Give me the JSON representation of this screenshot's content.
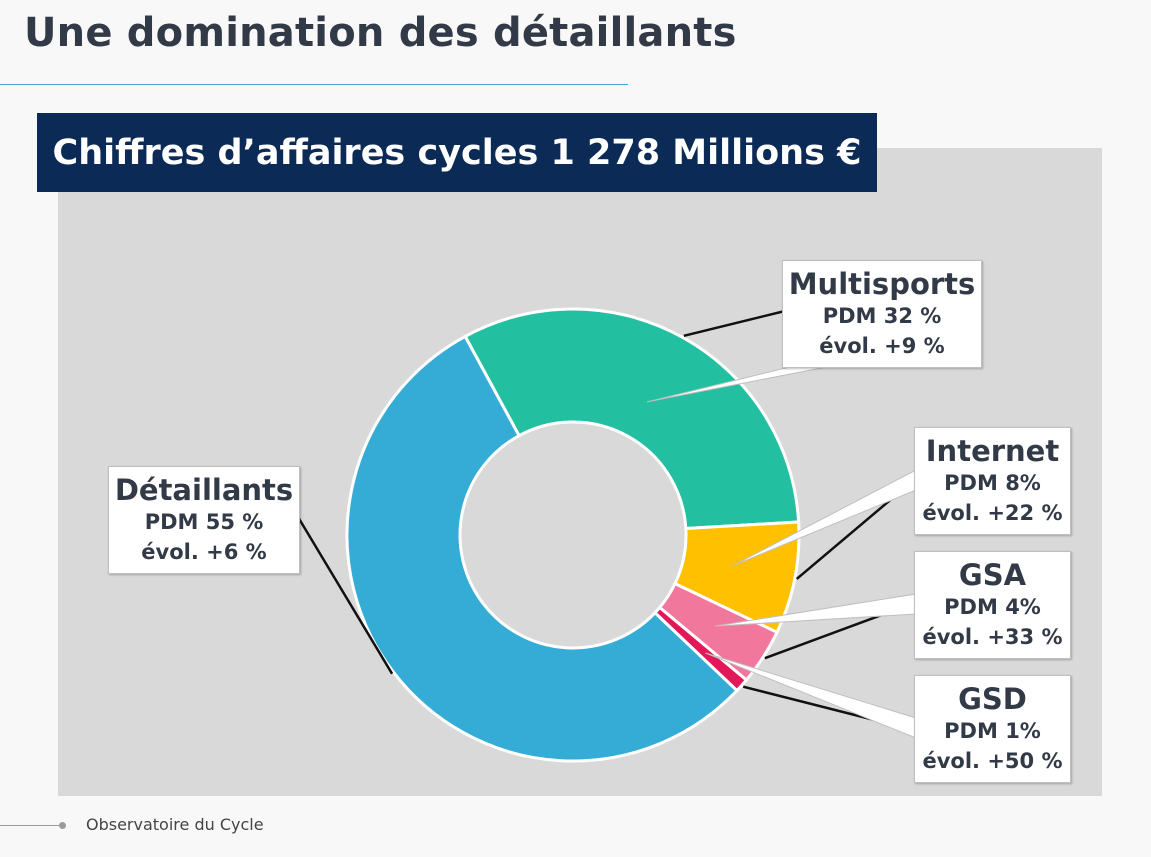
{
  "page": {
    "title": "Une domination des détaillants",
    "footer": "Observatoire du Cycle"
  },
  "chart_data": {
    "type": "pie",
    "style": "donut",
    "title": "Chiffres d’affaires cycles 1 278 Millions €",
    "slices": [
      {
        "name": "Multisports",
        "value": 32,
        "pdm": "PDM 32 %",
        "evol": "évol. +9 %",
        "color": "#22bfa0"
      },
      {
        "name": "Internet",
        "value": 8,
        "pdm": "PDM 8%",
        "evol": "évol. +22 %",
        "color": "#ffc000"
      },
      {
        "name": "GSA",
        "value": 4,
        "pdm": "PDM 4%",
        "evol": "évol. +33 %",
        "color": "#f2779d"
      },
      {
        "name": "GSD",
        "value": 1,
        "pdm": "PDM 1%",
        "evol": "évol. +50 %",
        "color": "#e2185a"
      },
      {
        "name": "Détaillants",
        "value": 55,
        "pdm": "PDM 55 %",
        "evol": "évol. +6 %",
        "color": "#34acd6"
      }
    ]
  }
}
